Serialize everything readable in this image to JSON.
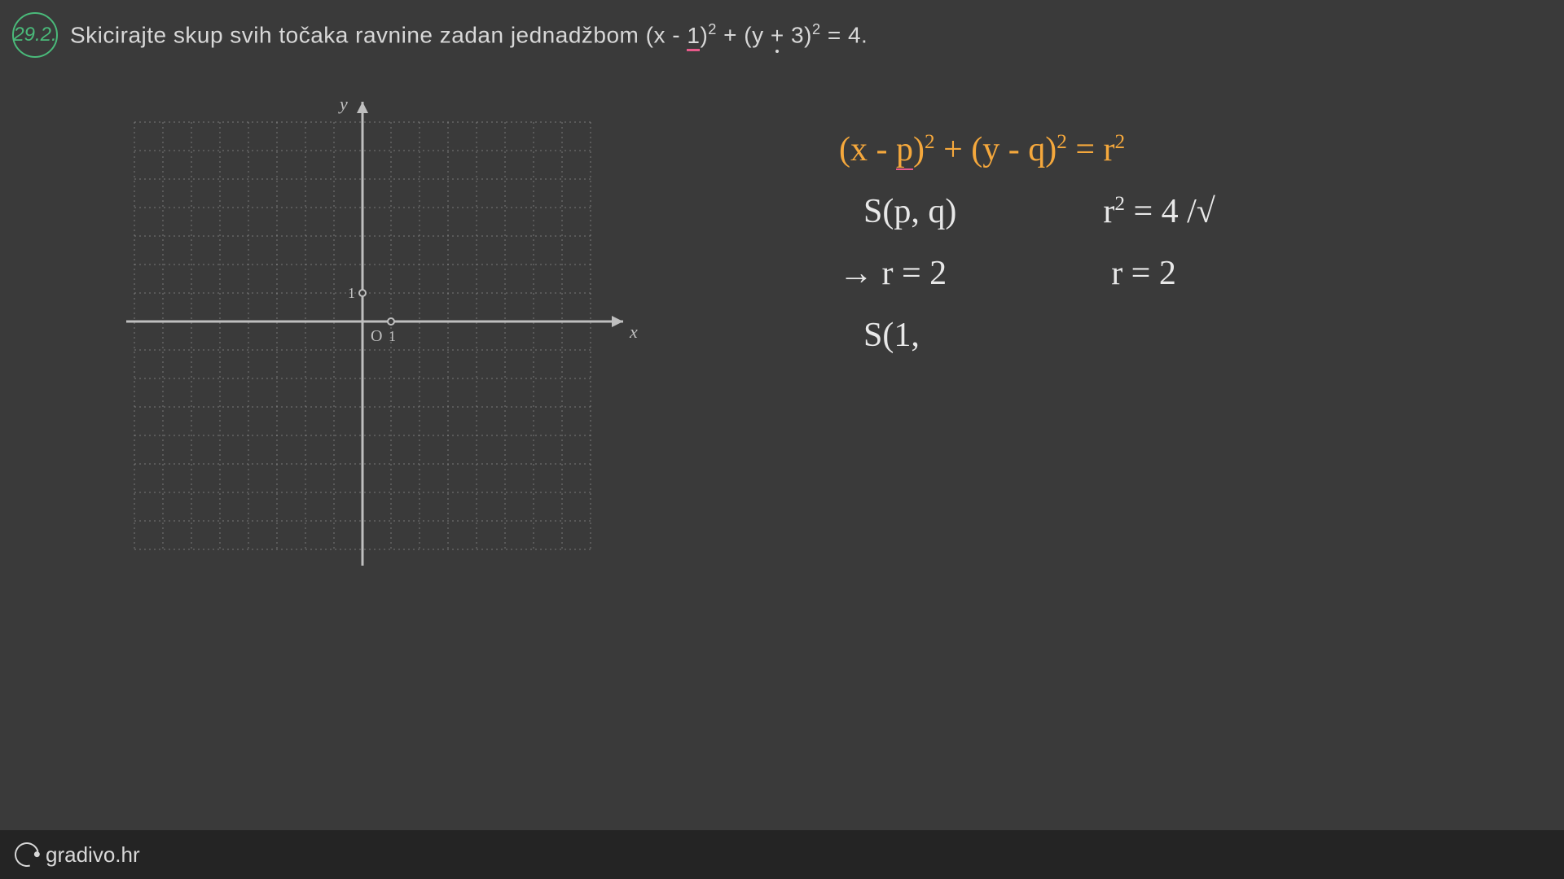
{
  "header": {
    "badge": "29.2.",
    "problem_prefix": "Skicirajte skup svih točaka ravnine zadan jednadžbom (x - ",
    "underlined_1": "1",
    "problem_mid1": ")",
    "sup1": "2",
    "problem_mid2": " + (y ",
    "dot_plus": "+",
    "problem_mid3": " 3)",
    "sup2": "2",
    "problem_end": " = 4."
  },
  "graph": {
    "grid_color": "#9a9a9a",
    "axis_color": "#bfbfbf",
    "background": "#3a3a3a",
    "cell_size": 35,
    "cols": 16,
    "rows": 15,
    "origin_col": 8,
    "origin_row": 7,
    "x_label": "x",
    "y_label": "y",
    "origin_label": "O",
    "unit_label": "1"
  },
  "annotations": {
    "formula": "(x - p)² + (y - q)² = r²",
    "center_generic": "S(p, q)",
    "r_squared": "r² = 4 /√",
    "r_value_arrow": "→ r = 2",
    "r_value": "r = 2",
    "center_partial": "S(1,",
    "colors": {
      "orange": "#f5a83c",
      "white": "#e8e8e8",
      "pink": "#e85a8a"
    }
  },
  "footer": {
    "brand": "gradivo.hr"
  }
}
